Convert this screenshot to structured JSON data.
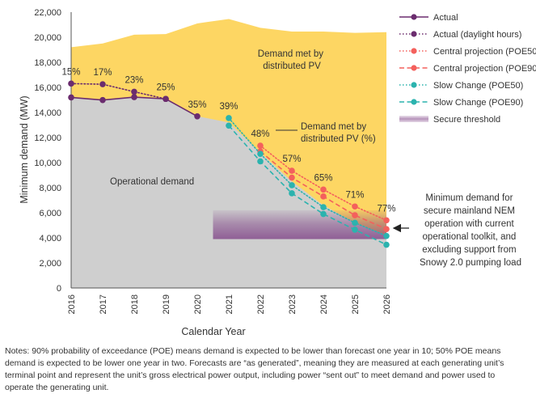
{
  "chart_data": {
    "type": "line",
    "xlabel": "Calendar Year",
    "ylabel": "Minimum demand (MW)",
    "ylim": [
      0,
      22000
    ],
    "yticks": [
      0,
      2000,
      4000,
      6000,
      8000,
      10000,
      12000,
      14000,
      16000,
      18000,
      20000,
      22000
    ],
    "ytick_labels": [
      "0",
      "2,000",
      "4,000",
      "6,000",
      "8,000",
      "10,000",
      "12,000",
      "14,000",
      "16,000",
      "18,000",
      "20,000",
      "22,000"
    ],
    "categories": [
      "2016",
      "2017",
      "2018",
      "2019",
      "2020",
      "2021",
      "2022",
      "2023",
      "2024",
      "2025",
      "2026"
    ],
    "areas": {
      "total_demand": {
        "x": [
          2016,
          2017,
          2018,
          2019,
          2020,
          2021,
          2022,
          2023,
          2024,
          2025,
          2026
        ],
        "values": [
          19200,
          19500,
          20200,
          20250,
          21100,
          21450,
          20750,
          20450,
          20450,
          20350,
          20400
        ],
        "color": "#fdd663"
      },
      "operational_demand": {
        "x": [
          2016,
          2017,
          2018,
          2019,
          2020,
          2021,
          2022,
          2023,
          2024,
          2025,
          2026
        ],
        "values": [
          15200,
          15000,
          15200,
          15100,
          13700,
          13200,
          10800,
          8500,
          6600,
          5200,
          4200
        ],
        "color": "#cfcfcf"
      },
      "secure_threshold_band": {
        "x_start": 2020.5,
        "x_end": 2026,
        "y_bottom": 3900,
        "y_top": 6200
      }
    },
    "series": [
      {
        "name": "Actual",
        "color": "#6b2c6e",
        "dash": "solid",
        "x": [
          2016,
          2017,
          2018,
          2019,
          2020
        ],
        "values": [
          15200,
          14990,
          15220,
          15080,
          13690
        ]
      },
      {
        "name": "Actual (daylight hours)",
        "color": "#6b2c6e",
        "dash": "dotted",
        "x": [
          2016,
          2017,
          2018,
          2019
        ],
        "values": [
          16300,
          16250,
          15650,
          15080
        ]
      },
      {
        "name": "Central projection (POE50)",
        "color": "#f4605c",
        "dash": "dotted",
        "x": [
          2022,
          2023,
          2024,
          2025,
          2026
        ],
        "values": [
          11350,
          9350,
          7850,
          6500,
          5400
        ]
      },
      {
        "name": "Central projection (POE90)",
        "color": "#f4605c",
        "dash": "dashed",
        "x": [
          2022,
          2023,
          2024,
          2025,
          2026
        ],
        "values": [
          10900,
          8800,
          7300,
          5800,
          4700
        ]
      },
      {
        "name": "Slow Change (POE50)",
        "color": "#2bb3ae",
        "dash": "dotted",
        "x": [
          2021,
          2022,
          2023,
          2024,
          2025,
          2026
        ],
        "values": [
          13550,
          10700,
          8200,
          6450,
          5200,
          4150
        ]
      },
      {
        "name": "Slow Change (POE90)",
        "color": "#2bb3ae",
        "dash": "dashed",
        "x": [
          2021,
          2022,
          2023,
          2024,
          2025,
          2026
        ],
        "values": [
          12950,
          10100,
          7550,
          5900,
          4650,
          3450
        ]
      }
    ],
    "legend": {
      "placement": "right",
      "items": [
        {
          "label": "Actual",
          "kind": "line",
          "color": "#6b2c6e",
          "dash": "solid"
        },
        {
          "label": "Actual (daylight hours)",
          "kind": "line",
          "color": "#6b2c6e",
          "dash": "dotted"
        },
        {
          "label": "Central projection (POE50)",
          "kind": "line",
          "color": "#f4605c",
          "dash": "dotted"
        },
        {
          "label": "Central projection (POE90)",
          "kind": "line",
          "color": "#f4605c",
          "dash": "dashed"
        },
        {
          "label": "Slow Change (POE50)",
          "kind": "line",
          "color": "#2bb3ae",
          "dash": "dotted"
        },
        {
          "label": "Slow Change (POE90)",
          "kind": "line",
          "color": "#2bb3ae",
          "dash": "dashed"
        },
        {
          "label": "Secure threshold",
          "kind": "band",
          "color": "#b08bb8",
          "dash": "solid"
        }
      ]
    },
    "percent_labels": [
      {
        "text": "15%",
        "x": 2016,
        "y": 16300
      },
      {
        "text": "17%",
        "x": 2017,
        "y": 16250
      },
      {
        "text": "23%",
        "x": 2018,
        "y": 15650
      },
      {
        "text": "25%",
        "x": 2019,
        "y": 15080
      },
      {
        "text": "35%",
        "x": 2020,
        "y": 13690
      },
      {
        "text": "39%",
        "x": 2021,
        "y": 13550
      },
      {
        "text": "48%",
        "x": 2022,
        "y": 11350
      },
      {
        "text": "57%",
        "x": 2023,
        "y": 9350
      },
      {
        "text": "65%",
        "x": 2024,
        "y": 7850
      },
      {
        "text": "71%",
        "x": 2025,
        "y": 6500
      },
      {
        "text": "77%",
        "x": 2026,
        "y": 5400
      }
    ],
    "annotations": {
      "demand_met_pv": [
        "Demand met by",
        "distributed PV"
      ],
      "demand_met_pv_pct": [
        "Demand met by",
        "distributed PV (%)"
      ],
      "operational_demand": "Operational demand",
      "min_demand_note": [
        "Minimum demand for",
        "secure mainland NEM",
        "operation with current",
        "operational toolkit, and",
        "excluding support from",
        "Snowy 2.0 pumping load"
      ]
    },
    "grid": false
  },
  "notes": [
    "Notes: 90% probability of exceedance (POE) means demand is expected to be lower than forecast one year in 10; 50% POE means",
    "demand is expected to be lower one year in two. Forecasts are “as generated”, meaning they are measured at each generating unit’s",
    "terminal point and represent the unit’s gross electrical power output, including power “sent out” to meet demand and power used to",
    "operate the generating unit."
  ]
}
